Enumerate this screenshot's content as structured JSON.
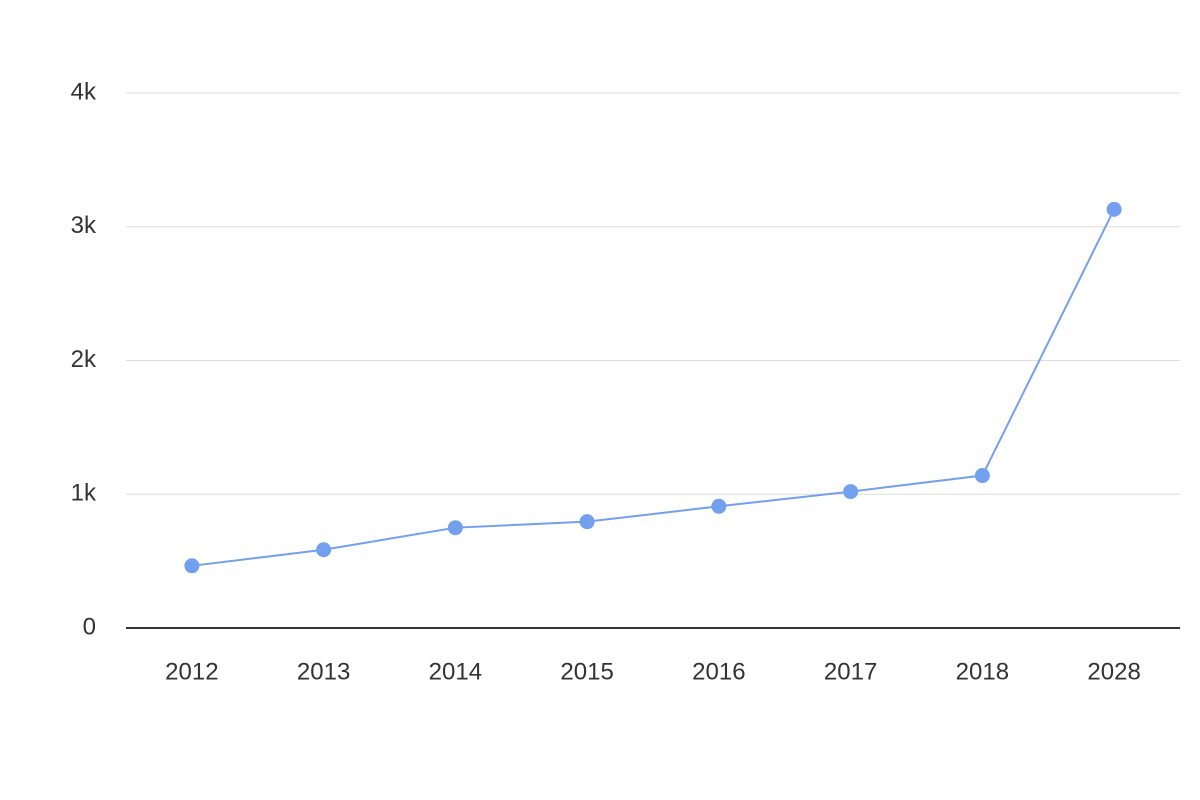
{
  "chart_data": {
    "type": "line",
    "categories": [
      "2012",
      "2013",
      "2014",
      "2015",
      "2016",
      "2017",
      "2018",
      "2028"
    ],
    "values": [
      465,
      585,
      750,
      795,
      910,
      1020,
      1140,
      3130
    ],
    "color": "#73a0ee",
    "ylim": [
      0,
      4000
    ],
    "yticks": [
      0,
      {
        "value": 1000,
        "label": "1k"
      },
      {
        "value": 2000,
        "label": "2k"
      },
      {
        "value": 3000,
        "label": "3k"
      },
      {
        "value": 4000,
        "label": "4k"
      }
    ],
    "grid": true
  }
}
